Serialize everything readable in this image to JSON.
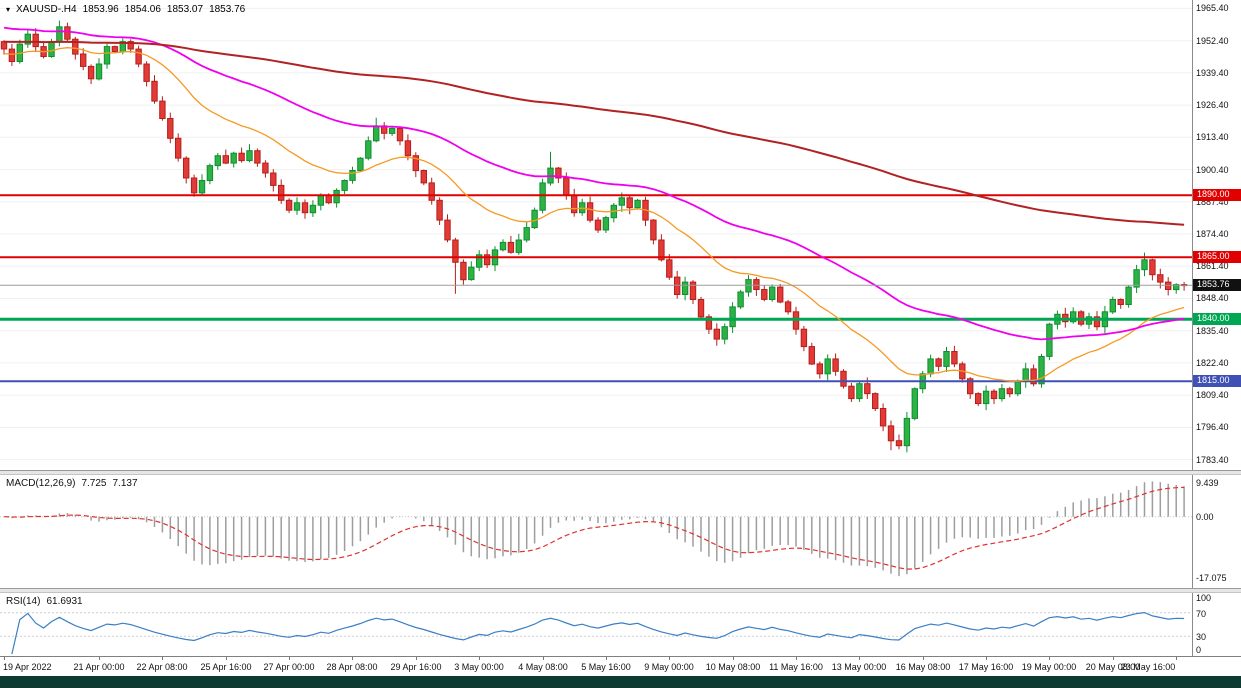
{
  "ui": {
    "header": {
      "collapse_icon": "▾",
      "symbol": "XAUUSD-.H4",
      "open": "1853.96",
      "high": "1854.06",
      "low": "1853.07",
      "close": "1853.76"
    },
    "macd_label": {
      "name": "MACD(12,26,9)",
      "main": "7.725",
      "signal": "7.137"
    },
    "rsi_label": {
      "name": "RSI(14)",
      "value": "61.6931"
    },
    "current_price_label": "1853.76"
  },
  "chart_data": {
    "type": "candlestick",
    "symbol": "XAUUSD-",
    "timeframe": "H4",
    "title": "XAUUSD-.H4 1853.96 1854.06 1853.07 1853.76",
    "y_range": [
      1779.2,
      1968.8
    ],
    "y_ticks": [
      1965.4,
      1952.4,
      1939.4,
      1926.4,
      1913.4,
      1900.4,
      1887.4,
      1874.4,
      1861.4,
      1848.4,
      1835.4,
      1822.4,
      1809.4,
      1796.4,
      1783.4
    ],
    "x_labels": [
      "19 Apr 2022",
      "21 Apr 00:00",
      "22 Apr 08:00",
      "25 Apr 16:00",
      "27 Apr 00:00",
      "28 Apr 08:00",
      "29 Apr 16:00",
      "3 May 00:00",
      "4 May 08:00",
      "5 May 16:00",
      "9 May 00:00",
      "10 May 08:00",
      "11 May 16:00",
      "13 May 00:00",
      "16 May 08:00",
      "17 May 16:00",
      "19 May 00:00",
      "20 May 08:00",
      "23 May 16:00"
    ],
    "x_tick_indices": [
      0,
      12,
      20,
      28,
      36,
      44,
      52,
      60,
      68,
      76,
      84,
      92,
      100,
      108,
      116,
      124,
      132,
      140,
      148
    ],
    "first_open": 1952,
    "closes": [
      1949,
      1944,
      1951,
      1955,
      1950,
      1946,
      1952,
      1958,
      1953,
      1947,
      1942,
      1937,
      1943,
      1950,
      1948,
      1952,
      1949,
      1943,
      1936,
      1928,
      1921,
      1913,
      1905,
      1897,
      1891,
      1896,
      1902,
      1906,
      1903,
      1907,
      1904,
      1908,
      1903,
      1899,
      1894,
      1888,
      1884,
      1887,
      1883,
      1886,
      1890,
      1887,
      1892,
      1896,
      1900,
      1905,
      1912,
      1918,
      1915,
      1917,
      1912,
      1906,
      1900,
      1895,
      1888,
      1880,
      1872,
      1863,
      1856,
      1861,
      1866,
      1862,
      1868,
      1871,
      1867,
      1872,
      1877,
      1884,
      1895,
      1901,
      1897,
      1890,
      1883,
      1887,
      1880,
      1876,
      1881,
      1886,
      1889,
      1885,
      1888,
      1880,
      1872,
      1864,
      1857,
      1850,
      1855,
      1848,
      1841,
      1836,
      1832,
      1837,
      1845,
      1851,
      1856,
      1852,
      1848,
      1853,
      1847,
      1843,
      1836,
      1829,
      1822,
      1818,
      1824,
      1819,
      1813,
      1808,
      1814,
      1810,
      1804,
      1797,
      1791,
      1789,
      1800,
      1812,
      1818,
      1824,
      1821,
      1827,
      1822,
      1816,
      1810,
      1806,
      1811,
      1808,
      1812,
      1810,
      1815,
      1820,
      1814,
      1825,
      1838,
      1842,
      1839,
      1843,
      1838,
      1841,
      1837,
      1843,
      1848,
      1846,
      1853,
      1860,
      1864,
      1858,
      1855,
      1852,
      1854,
      1853.8
    ],
    "wick_overrides": {
      "7": {
        "h": 1960.5
      },
      "47": {
        "h": 1921.3
      },
      "57": {
        "l": 1850.3
      },
      "69": {
        "h": 1907.6
      },
      "90": {
        "l": 1829.3
      },
      "112": {
        "l": 1787.2
      },
      "113": {
        "l": 1787.6
      },
      "144": {
        "h": 1866.9
      }
    },
    "up_fill": "#2db245",
    "up_stroke": "#0e8f2f",
    "down_fill": "#e23a36",
    "down_stroke": "#b51f1b",
    "moving_averages": [
      {
        "name": "ma-fast-orange",
        "period": 21,
        "seed": 1947,
        "color": "#f59a23",
        "width": 1.3
      },
      {
        "name": "ma-medium-magenta",
        "period": 55,
        "seed": 1958,
        "color": "#ef00ef",
        "width": 1.8
      },
      {
        "name": "ma-slow-darkred",
        "period": 200,
        "seed": 1952,
        "color": "#b22222",
        "width": 2
      }
    ],
    "horizontal_lines": [
      {
        "value": 1890,
        "color": "#e00000",
        "width": 2
      },
      {
        "value": 1865,
        "color": "#e00000",
        "width": 2
      },
      {
        "value": 1840,
        "color": "#00a651",
        "width": 3
      },
      {
        "value": 1815,
        "color": "#3f51b5",
        "width": 2
      }
    ],
    "current_price": 1853.76,
    "current_price_line_color": "#9b9b9b",
    "current_price_label_bg": "#111111",
    "indicators": {
      "macd": {
        "fast": 12,
        "slow": 26,
        "signal": 9,
        "current_main": 7.725,
        "current_signal": 7.137,
        "range": [
          -19.8,
          11.6
        ],
        "ticks": [
          {
            "v": 9.439,
            "label": "9.439"
          },
          {
            "v": 0,
            "label": "0.00"
          },
          {
            "v": -17.075,
            "label": "-17.075"
          }
        ],
        "hist_color": "#9e9e9e",
        "signal_color": "#e03131"
      },
      "rsi": {
        "period": 14,
        "current": 61.6931,
        "range": [
          0,
          100
        ],
        "ticks": [
          {
            "v": 100,
            "label": "100"
          },
          {
            "v": 70,
            "label": "70"
          },
          {
            "v": 30,
            "label": "30"
          },
          {
            "v": 0,
            "label": "0"
          }
        ],
        "levels": [
          70,
          30
        ],
        "color": "#3b7fc4"
      }
    }
  }
}
